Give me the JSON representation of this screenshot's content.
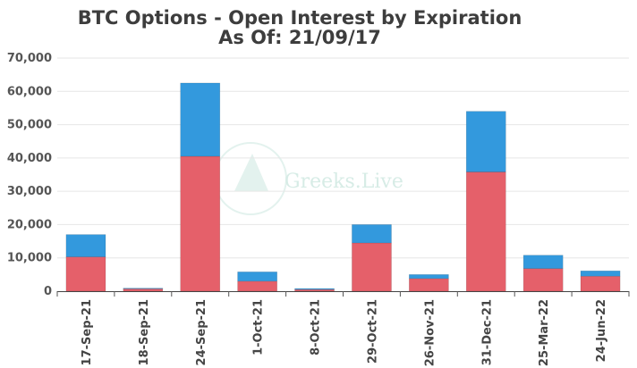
{
  "chart_data": {
    "type": "bar",
    "stacked": true,
    "title_lines": [
      "BTC Options - Open Interest by Expiration",
      "As Of: 21/09/17"
    ],
    "categories": [
      "17-Sep-21",
      "18-Sep-21",
      "24-Sep-21",
      "1-Oct-21",
      "8-Oct-21",
      "29-Oct-21",
      "26-Nov-21",
      "31-Dec-21",
      "25-Mar-22",
      "24-Jun-22"
    ],
    "series": [
      {
        "color": "#e5606a",
        "values": [
          10300,
          700,
          40500,
          3000,
          500,
          14500,
          3800,
          35800,
          6800,
          4500
        ]
      },
      {
        "color": "#3399dd",
        "values": [
          6700,
          200,
          22000,
          2800,
          300,
          5500,
          1200,
          18200,
          4000,
          1600
        ]
      }
    ],
    "ylim": [
      0,
      70000
    ],
    "yticks": [
      0,
      10000,
      20000,
      30000,
      40000,
      50000,
      60000,
      70000
    ],
    "ytick_labels": [
      "0",
      "10,000",
      "20,000",
      "30,000",
      "40,000",
      "50,000",
      "60,000",
      "70,000"
    ],
    "grid": true,
    "legend": "none",
    "watermark": "Greeks.Live"
  }
}
